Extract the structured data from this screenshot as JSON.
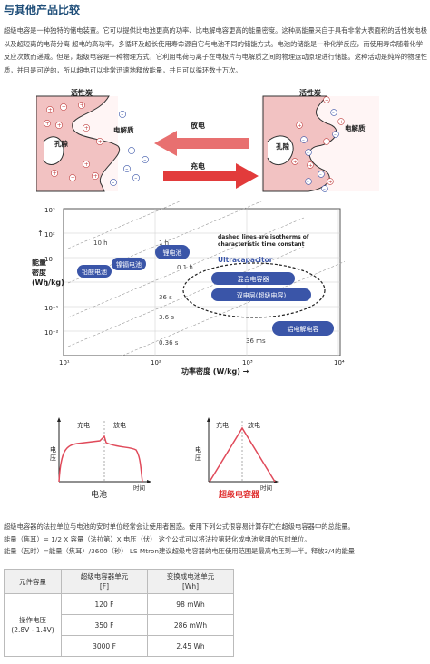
{
  "title": "与其他产品比较",
  "intro": "超级电容是一种独特的储电装置。它可以提供比电池更高的功率、比电解电容更高的能量密度。这种高能量来自于具有非常大表面积的活性炭电极以及超短离的电荷分离 超电的高功率，多循环及超长使用寿命源自它与电池不同的储能方式。电池的储能是一种化学反应，而使用寿命随着化学反应次数而递减。但是，超级电容是一种物理方式，它利用电荷与离子在电极片与电解质之间的物理运动原理进行储能。这种活动是纯粹的物理性质，并且是可逆的，所以超电可以非常迅速地释放能量，并且可以循环数十万次。",
  "storage_diagram": {
    "left_carbon": "活性炭",
    "left_electrolyte": "电解质",
    "left_pore": "孔隙",
    "right_carbon": "活性炭",
    "right_electrolyte": "电解质",
    "right_pore": "孔隙",
    "discharge": "放电",
    "charge": "充电",
    "colors": {
      "discharge_arrow": "#e05555",
      "charge_arrow": "#e23b3b",
      "carbon": "#f2c2c2"
    }
  },
  "ragone": {
    "ylabel": "能量密度 (Wh/kg)",
    "xlabel": "功率密度 (W/kg) →",
    "y_ticks": [
      "10³",
      "10²",
      "10",
      "1",
      "10⁻¹",
      "10⁻²"
    ],
    "x_ticks": [
      "10¹",
      "10²",
      "10³",
      "10⁴"
    ],
    "time_labels": [
      "10 h",
      "1 h",
      "0.1 h",
      "36 s",
      "3.6 s",
      "0.36 s",
      "36 ms"
    ],
    "note_line1": "dashed lines are isotherms of",
    "note_line2": "characteristic time constant",
    "ultracap_label": "Ultracapacitor",
    "regions": [
      "铅酸电池",
      "镍镉电池",
      "锂电池",
      "混合电容器",
      "双电层(超级电容)",
      "铝电解电容"
    ],
    "colors": {
      "region": "#3a55a8",
      "grid": "#bbbbbb"
    }
  },
  "curves": {
    "battery_charge": "充电",
    "battery_discharge": "放电",
    "battery_ylabel": "电压",
    "battery_xlabel": "时间",
    "battery_title": "电池",
    "cap_charge": "充电",
    "cap_discharge": "放电",
    "cap_ylabel": "电压",
    "cap_xlabel": "时间",
    "cap_title": "超级电容器",
    "colors": {
      "curve": "#e04a5a",
      "cap_title": "#e03030"
    }
  },
  "notes": [
    "超级电容器的法拉单位与电池的安时单位经常会让使用者困惑。使用下列公式很容易计算存贮在超级电容器中的总能量。",
    "能量（焦耳）= 1/2 X 容量（法拉第）X 电压（伏） 这个公式可以将法拉第转化成电池常用的瓦时单位。",
    "能量（瓦时）=能量（焦耳）/3600（秒） LS Mtron建议超级电容器的电压使用范围是最高电压到一半。释放3/4的能量"
  ],
  "table": {
    "headers": [
      "元件容量",
      "超级电容器单元\n[F]",
      "变换成电池单元\n[Wh]"
    ],
    "row_label_line1": "操作电压",
    "row_label_line2": "(2.8V - 1.4V)",
    "rows": [
      {
        "f": "120 F",
        "wh": "98 mWh"
      },
      {
        "f": "350 F",
        "wh": "286 mWh"
      },
      {
        "f": "3000 F",
        "wh": "2.45 Wh"
      }
    ]
  }
}
